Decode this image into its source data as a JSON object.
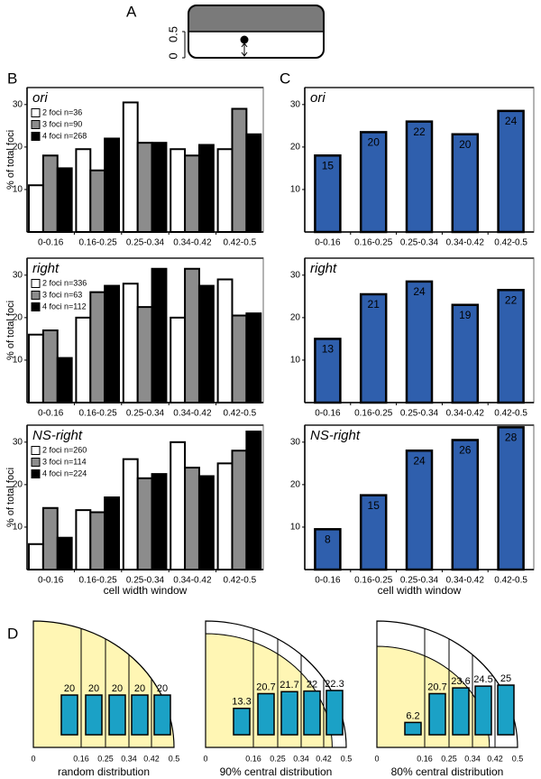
{
  "panel_labels": [
    "A",
    "B",
    "C",
    "D"
  ],
  "cell_diagram": {
    "axis_labels": [
      "0.5",
      "0"
    ]
  },
  "chart_data": [
    {
      "type": "grouped_bar",
      "title": "ori",
      "y_label": "% of total foci",
      "categories": [
        "0-0.16",
        "0.16-0.25",
        "0.25-0.34",
        "0.34-0.42",
        "0.42-0.5"
      ],
      "series": [
        {
          "name": "2 foci n=36",
          "color": "#ffffff",
          "values": [
            11,
            19.5,
            30.5,
            19.5,
            19.5
          ]
        },
        {
          "name": "3 foci n=90",
          "color": "#8c8c8c",
          "values": [
            18,
            14.5,
            21,
            18,
            29
          ]
        },
        {
          "name": "4 foci n=268",
          "color": "#000000",
          "values": [
            15,
            22,
            21,
            20.5,
            23
          ]
        }
      ],
      "ylim": [
        0,
        34
      ],
      "yticks": [
        10,
        20,
        30
      ]
    },
    {
      "type": "grouped_bar",
      "title": "right",
      "y_label": "% of total foci",
      "categories": [
        "0-0.16",
        "0.16-0.25",
        "0.25-0.34",
        "0.34-0.42",
        "0.42-0.5"
      ],
      "series": [
        {
          "name": "2 foci n=336",
          "color": "#ffffff",
          "values": [
            16,
            20,
            28,
            20,
            29
          ]
        },
        {
          "name": "3 foci n=63",
          "color": "#8c8c8c",
          "values": [
            17,
            26,
            22.5,
            31.5,
            20.5
          ]
        },
        {
          "name": "4 foci n=112",
          "color": "#000000",
          "values": [
            10.5,
            27.5,
            31.5,
            27.5,
            21
          ]
        }
      ],
      "ylim": [
        0,
        34
      ],
      "yticks": [
        10,
        20,
        30
      ]
    },
    {
      "type": "grouped_bar",
      "title": "NS-right",
      "y_label": "% of total foci",
      "x_label": "cell width window",
      "categories": [
        "0-0.16",
        "0.16-0.25",
        "0.25-0.34",
        "0.34-0.42",
        "0.42-0.5"
      ],
      "series": [
        {
          "name": "2 foci n=260",
          "color": "#ffffff",
          "values": [
            6,
            14,
            26,
            30,
            25
          ]
        },
        {
          "name": "3 foci n=114",
          "color": "#8c8c8c",
          "values": [
            14.5,
            13.5,
            21.5,
            24,
            28
          ]
        },
        {
          "name": "4 foci n=224",
          "color": "#000000",
          "values": [
            7.5,
            17,
            22.5,
            22,
            32.5
          ]
        }
      ],
      "ylim": [
        0,
        34
      ],
      "yticks": [
        10,
        20,
        30
      ]
    },
    {
      "type": "bar",
      "title": "ori",
      "categories": [
        "0-0.16",
        "0.16-0.25",
        "0.25-0.34",
        "0.34-0.42",
        "0.42-0.5"
      ],
      "values": [
        18,
        23.5,
        26,
        23,
        28.5
      ],
      "counts": [
        15,
        20,
        22,
        20,
        24
      ],
      "color": "#2f5fad",
      "ylim": [
        0,
        34
      ],
      "yticks": [
        10,
        20,
        30
      ]
    },
    {
      "type": "bar",
      "title": "right",
      "categories": [
        "0-0.16",
        "0.16-0.25",
        "0.25-0.34",
        "0.34-0.42",
        "0.42-0.5"
      ],
      "values": [
        15,
        25.5,
        28.5,
        23,
        26.5
      ],
      "counts": [
        13,
        21,
        24,
        19,
        22
      ],
      "color": "#2f5fad",
      "ylim": [
        0,
        34
      ],
      "yticks": [
        10,
        20,
        30
      ]
    },
    {
      "type": "bar",
      "title": "NS-right",
      "x_label": "cell width window",
      "categories": [
        "0-0.16",
        "0.16-0.25",
        "0.25-0.34",
        "0.34-0.42",
        "0.42-0.5"
      ],
      "values": [
        9.5,
        17.5,
        28,
        30.5,
        33.5
      ],
      "counts": [
        8,
        15,
        24,
        26,
        28
      ],
      "color": "#2f5fad",
      "ylim": [
        0,
        34
      ],
      "yticks": [
        10,
        20,
        30
      ]
    },
    {
      "type": "sector_bar",
      "title": "random distribution",
      "xticks": [
        0,
        0.16,
        0.25,
        0.34,
        0.42,
        0.5
      ],
      "values": [
        20,
        20,
        20,
        20,
        20
      ],
      "color": "#1ba1c6",
      "background": "#fff6b4"
    },
    {
      "type": "sector_bar",
      "title": "90% central distribution",
      "xticks": [
        0,
        0.16,
        0.25,
        0.34,
        0.42,
        0.5
      ],
      "values": [
        13.3,
        20.7,
        21.7,
        22,
        22.3
      ],
      "color": "#1ba1c6",
      "background": "#fff6b4"
    },
    {
      "type": "sector_bar",
      "title": "80% central distribution",
      "xticks": [
        0,
        0.16,
        0.25,
        0.34,
        0.42,
        0.5
      ],
      "values": [
        6.2,
        20.7,
        23.6,
        24.5,
        25
      ],
      "color": "#1ba1c6",
      "background": "#fff6b4"
    }
  ]
}
